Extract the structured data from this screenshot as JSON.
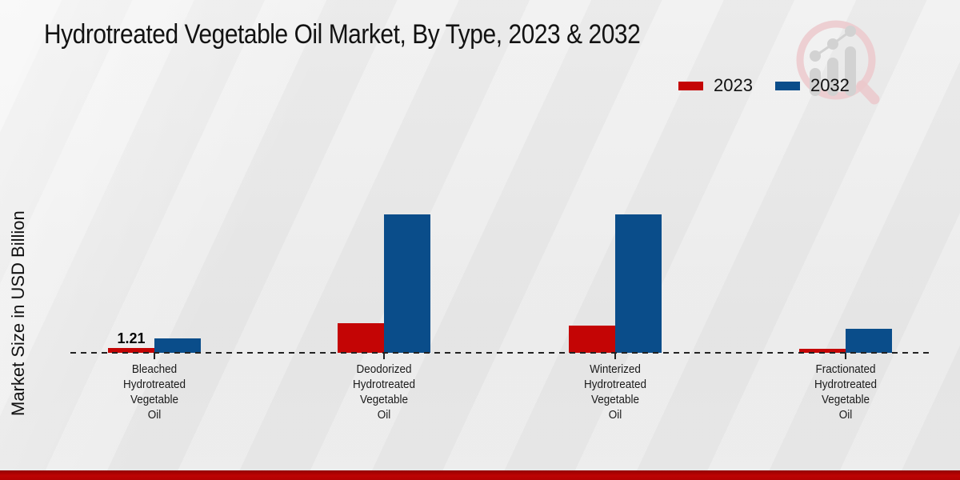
{
  "title": "Hydrotreated Vegetable Oil Market, By Type, 2023 & 2032",
  "ylabel": "Market Size in USD Billion",
  "legend": {
    "items": [
      {
        "label": "2023",
        "color": "#c40505"
      },
      {
        "label": "2032",
        "color": "#0a4d8a"
      }
    ]
  },
  "chart_data": {
    "type": "bar",
    "title": "Hydrotreated Vegetable Oil Market, By Type, 2023 & 2032",
    "ylabel": "Market Size in USD Billion",
    "categories": [
      "Bleached Hydrotreated Vegetable Oil",
      "Deodorized Hydrotreated Vegetable Oil",
      "Winterized Hydrotreated Vegetable Oil",
      "Fractionated Hydrotreated Vegetable Oil"
    ],
    "category_label_lines": [
      [
        "Bleached",
        "Hydrotreated",
        "Vegetable",
        "Oil"
      ],
      [
        "Deodorized",
        "Hydrotreated",
        "Vegetable",
        "Oil"
      ],
      [
        "Winterized",
        "Hydrotreated",
        "Vegetable",
        "Oil"
      ],
      [
        "Fractionated",
        "Hydrotreated",
        "Vegetable",
        "Oil"
      ]
    ],
    "series": [
      {
        "name": "2023",
        "color": "#c40505",
        "values": [
          1.21,
          7.5,
          6.9,
          0.95
        ],
        "value_labels": [
          "1.21",
          "",
          "",
          ""
        ]
      },
      {
        "name": "2032",
        "color": "#0a4d8a",
        "values": [
          3.65,
          34.9,
          34.9,
          6.05
        ],
        "value_labels": [
          "",
          "",
          "",
          ""
        ]
      }
    ],
    "ylim": [
      0,
      40
    ],
    "grid": false,
    "legend_position": "top-right",
    "x_axis_style": "dashed-line-with-ticks"
  },
  "footer": {
    "accent_color": "#b20202"
  },
  "watermark": {
    "name": "market-research-growth-magnifier-logo"
  }
}
